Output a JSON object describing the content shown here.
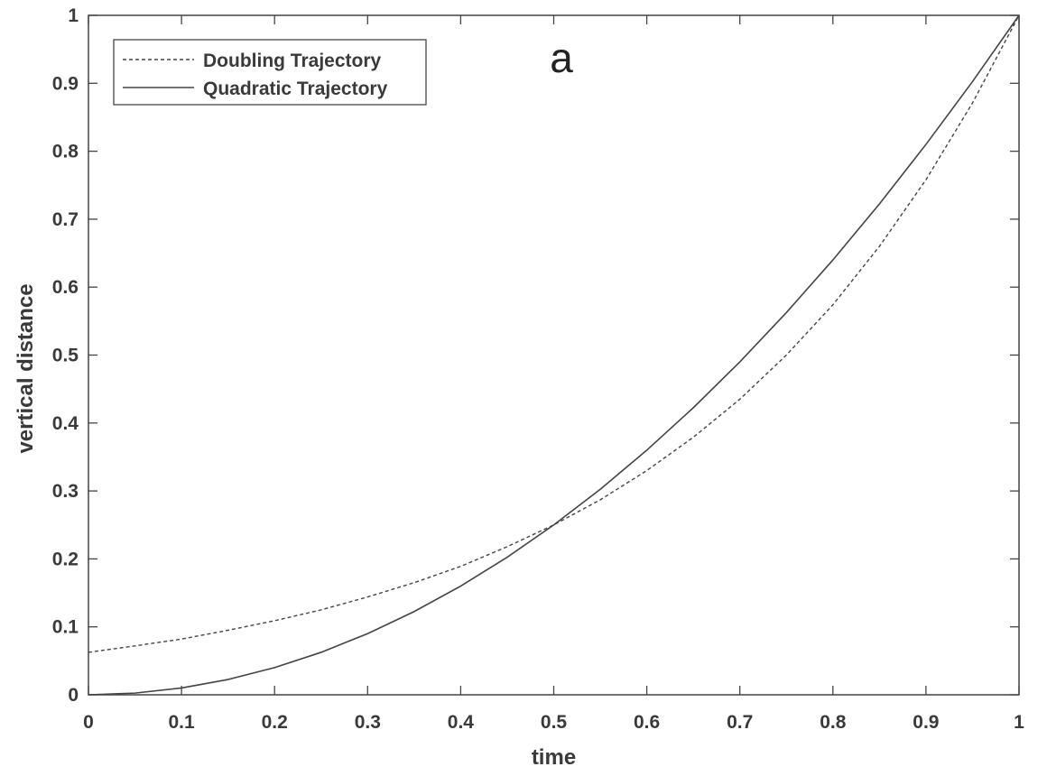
{
  "chart_data": {
    "type": "line",
    "panel_label": "a",
    "xlabel": "time",
    "ylabel": "vertical distance",
    "xlim": [
      0,
      1
    ],
    "ylim": [
      0,
      1
    ],
    "xticks": [
      0,
      0.1,
      0.2,
      0.3,
      0.4,
      0.5,
      0.6,
      0.7,
      0.8,
      0.9,
      1
    ],
    "yticks": [
      0,
      0.1,
      0.2,
      0.3,
      0.4,
      0.5,
      0.6,
      0.7,
      0.8,
      0.9,
      1
    ],
    "xtick_labels": [
      "0",
      "0.1",
      "0.2",
      "0.3",
      "0.4",
      "0.5",
      "0.6",
      "0.7",
      "0.8",
      "0.9",
      "1"
    ],
    "ytick_labels": [
      "0",
      "0.1",
      "0.2",
      "0.3",
      "0.4",
      "0.5",
      "0.6",
      "0.7",
      "0.8",
      "0.9",
      "1"
    ],
    "grid": false,
    "legend_position": "top-left",
    "series": [
      {
        "name": "Doubling Trajectory",
        "style": "dashed",
        "color": "#444444",
        "x": [
          0,
          0.05,
          0.1,
          0.15,
          0.2,
          0.25,
          0.3,
          0.35,
          0.4,
          0.45,
          0.5,
          0.55,
          0.6,
          0.65,
          0.7,
          0.75,
          0.8,
          0.85,
          0.9,
          0.95,
          1
        ],
        "y": [
          0.0625,
          0.072,
          0.082,
          0.095,
          0.109,
          0.125,
          0.144,
          0.165,
          0.189,
          0.218,
          0.25,
          0.287,
          0.33,
          0.379,
          0.435,
          0.5,
          0.574,
          0.66,
          0.758,
          0.871,
          1
        ]
      },
      {
        "name": "Quadratic Trajectory",
        "style": "solid",
        "color": "#444444",
        "x": [
          0,
          0.05,
          0.1,
          0.15,
          0.2,
          0.25,
          0.3,
          0.35,
          0.4,
          0.45,
          0.5,
          0.55,
          0.6,
          0.65,
          0.7,
          0.75,
          0.8,
          0.85,
          0.9,
          0.95,
          1
        ],
        "y": [
          0,
          0.0025,
          0.01,
          0.0225,
          0.04,
          0.0625,
          0.09,
          0.1225,
          0.16,
          0.2025,
          0.25,
          0.3025,
          0.36,
          0.4225,
          0.49,
          0.5625,
          0.64,
          0.7225,
          0.81,
          0.9025,
          1
        ]
      }
    ]
  }
}
